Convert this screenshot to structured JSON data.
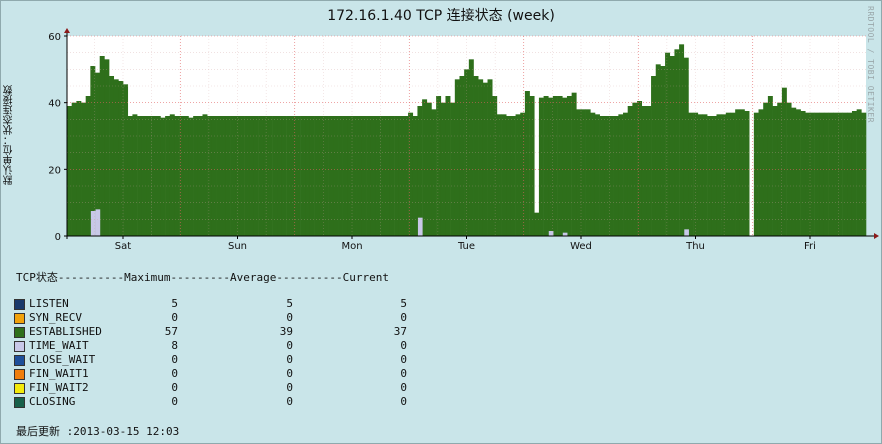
{
  "title": "172.16.1.40 TCP 连接状态 (week)",
  "watermark": "RRDTOOL / TOBI OETIKER",
  "chart_data": {
    "type": "bar",
    "ylabel": "默认单位：状态连接数",
    "ylim": [
      0,
      60
    ],
    "yticks": [
      0,
      20,
      40,
      60
    ],
    "grid": true,
    "x_labels": [
      "Sat",
      "Sun",
      "Mon",
      "Tue",
      "Wed",
      "Thu",
      "Fri"
    ],
    "series": [
      {
        "name": "ESTABLISHED",
        "color": "#2e6f1b",
        "values": [
          39,
          40,
          40.5,
          40,
          42,
          51,
          49,
          54,
          53,
          48,
          47,
          46.5,
          45.5,
          36,
          36.5,
          36,
          36,
          36,
          36,
          36,
          35.5,
          36,
          36.5,
          36,
          36,
          36,
          35.5,
          36,
          36,
          36.5,
          36,
          36,
          36,
          36,
          36,
          36,
          36,
          36,
          36,
          36,
          36,
          36,
          36,
          36,
          36,
          36,
          36,
          36,
          36,
          36,
          36,
          36,
          36,
          36,
          36,
          36,
          36,
          36,
          36,
          36,
          36,
          36,
          36,
          36,
          36,
          36,
          36,
          36,
          36,
          36,
          36,
          36,
          36,
          37,
          36,
          39,
          41,
          40,
          38,
          42,
          40,
          42,
          40,
          47,
          48,
          50,
          53,
          48,
          47,
          46,
          47,
          42,
          36.5,
          36.5,
          36,
          36,
          36.5,
          37,
          43.5,
          42,
          7,
          41.5,
          42,
          41.5,
          42,
          42,
          41.5,
          42,
          43,
          38,
          38,
          38,
          37,
          36.5,
          36,
          36,
          36,
          36,
          36.5,
          37,
          39,
          40,
          40.5,
          39,
          39,
          48,
          51.5,
          51,
          55,
          54,
          56,
          57.5,
          53.5,
          37,
          37,
          36.5,
          36.5,
          36,
          36,
          36.5,
          36.5,
          37,
          37,
          38,
          38,
          37.5,
          0,
          37,
          38,
          40,
          42,
          39,
          40,
          44.5,
          40,
          38.5,
          38,
          37.5,
          37,
          37,
          37,
          37,
          37,
          37,
          37,
          37,
          37,
          37,
          37.5,
          38,
          37
        ]
      },
      {
        "name": "TIME_WAIT",
        "color": "#c8c8e8",
        "values": [
          0,
          0,
          0,
          0,
          0,
          7.5,
          8,
          0,
          0,
          0,
          0,
          0,
          0,
          0,
          0,
          0,
          0,
          0,
          0,
          0,
          0,
          0,
          0,
          0,
          0,
          0,
          0,
          0,
          0,
          0,
          0,
          0,
          0,
          0,
          0,
          0,
          0,
          0,
          0,
          0,
          0,
          0,
          0,
          0,
          0,
          0,
          0,
          0,
          0,
          0,
          0,
          0,
          0,
          0,
          0,
          0,
          0,
          0,
          0,
          0,
          0,
          0,
          0,
          0,
          0,
          0,
          0,
          0,
          0,
          0,
          0,
          0,
          0,
          0,
          0,
          5.5,
          0,
          0,
          0,
          0,
          0,
          0,
          0,
          0,
          0,
          0,
          0,
          0,
          0,
          0,
          0,
          0,
          0,
          0,
          0,
          0,
          0,
          0,
          0,
          0,
          0,
          0,
          0,
          1.5,
          0,
          0,
          1,
          0,
          0,
          0,
          0,
          0,
          0,
          0,
          0,
          0,
          0,
          0,
          0,
          0,
          0,
          0,
          0,
          0,
          0,
          0,
          0,
          0,
          0,
          0,
          0,
          0,
          2,
          0,
          0,
          0,
          0,
          0,
          0,
          0,
          0,
          0,
          0,
          0,
          0,
          0,
          0,
          0,
          0,
          0,
          0,
          0,
          0,
          0,
          0,
          0,
          0,
          0,
          0,
          0,
          0,
          0,
          0,
          0,
          0,
          0,
          0,
          0,
          0,
          0,
          0,
          0,
          0,
          0,
          0
        ]
      }
    ]
  },
  "legend": {
    "header": "TCP状态----------Maximum---------Average----------Current",
    "rows": [
      {
        "name": "LISTEN",
        "color": "#1b3a6b",
        "max": "5",
        "avg": "5",
        "cur": "5"
      },
      {
        "name": "SYN_RECV",
        "color": "#f2a20b",
        "max": "0",
        "avg": "0",
        "cur": "0"
      },
      {
        "name": "ESTABLISHED",
        "color": "#2e6f1b",
        "max": "57",
        "avg": "39",
        "cur": "37"
      },
      {
        "name": "TIME_WAIT",
        "color": "#c8c8e8",
        "max": "8",
        "avg": "0",
        "cur": "0"
      },
      {
        "name": "CLOSE_WAIT",
        "color": "#1e4f9a",
        "max": "0",
        "avg": "0",
        "cur": "0"
      },
      {
        "name": "FIN_WAIT1",
        "color": "#ef7d0b",
        "max": "0",
        "avg": "0",
        "cur": "0"
      },
      {
        "name": "FIN_WAIT2",
        "color": "#f4ea0b",
        "max": "0",
        "avg": "0",
        "cur": "0"
      },
      {
        "name": "CLOSING",
        "color": "#17604a",
        "max": "0",
        "avg": "0",
        "cur": "0"
      }
    ]
  },
  "updated": "最后更新 :2013-03-15 12:03"
}
